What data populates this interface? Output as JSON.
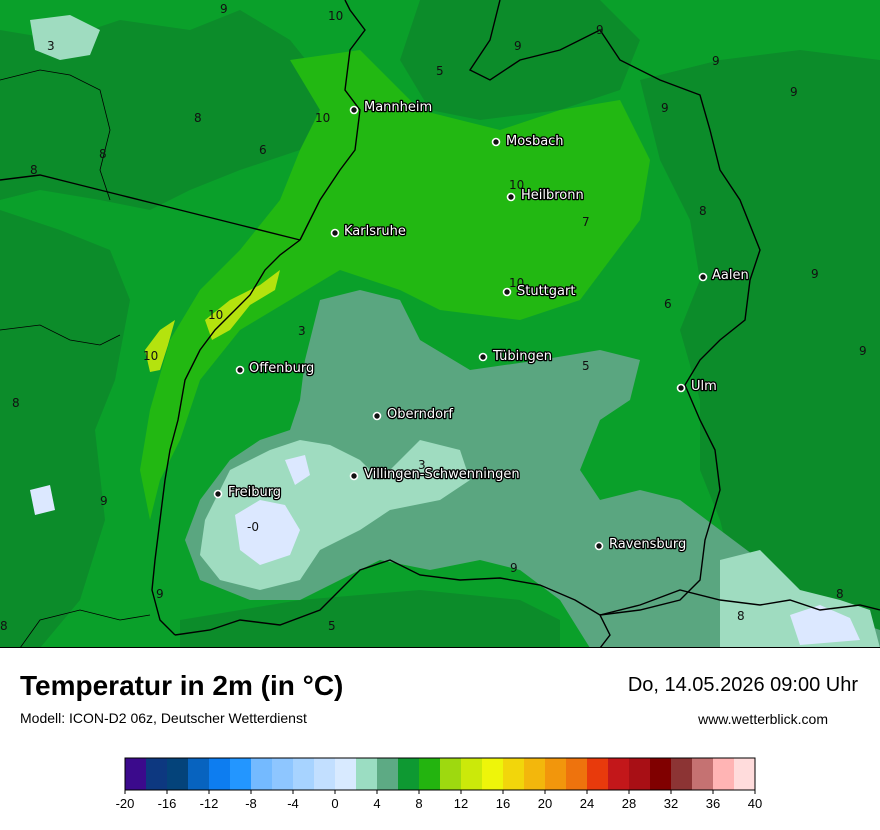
{
  "title": "Temperatur in 2m (in °C)",
  "model": "Modell: ICON-D2 06z, Deutscher Wetterdienst",
  "datetime": "Do, 14.05.2026 09:00 Uhr",
  "website": "www.wetterblick.com",
  "colors": {
    "base_green": "#0aa02a",
    "dark_green": "#0c8c2a",
    "light_green": "#22b812",
    "yellow_green": "#b4e30e",
    "sage": "#5aa680",
    "mint": "#9fdcc0",
    "pale_blue": "#dce8ff",
    "border": "#000000"
  },
  "cities": [
    {
      "name": "Mannheim"
    },
    {
      "name": "Mosbach"
    },
    {
      "name": "Heilbronn"
    },
    {
      "name": "Karlsruhe"
    },
    {
      "name": "Aalen"
    },
    {
      "name": "Stuttgart"
    },
    {
      "name": "Tübingen"
    },
    {
      "name": "Offenburg"
    },
    {
      "name": "Ulm"
    },
    {
      "name": "Oberndorf"
    },
    {
      "name": "Villingen-Schwenningen"
    },
    {
      "name": "Freiburg"
    },
    {
      "name": "Ravensburg"
    }
  ],
  "isotherm_labels": [
    "9",
    "10",
    "3",
    "9",
    "9",
    "9",
    "5",
    "9",
    "9",
    "8",
    "10",
    "6",
    "8",
    "10",
    "8",
    "7",
    "8",
    "10",
    "9",
    "3",
    "10",
    "6",
    "10",
    "9",
    "8",
    "5",
    "3",
    "9",
    "-0",
    "9",
    "9",
    "8",
    "8",
    "5",
    "8"
  ],
  "legend": {
    "colors": [
      "#3b0a8c",
      "#0d3880",
      "#04437a",
      "#0763bf",
      "#0d7df0",
      "#2396ff",
      "#74baff",
      "#8ec6ff",
      "#a7d3ff",
      "#c2dfff",
      "#d8eaff",
      "#9bddc2",
      "#5daa84",
      "#0e9932",
      "#23b40f",
      "#9ed90f",
      "#cbe90a",
      "#eef50a",
      "#f2d60b",
      "#f3b70c",
      "#f2960c",
      "#ee730d",
      "#e83a0c",
      "#c3171a",
      "#a80f15",
      "#800000",
      "#8c3434",
      "#c57272",
      "#ffb4b4",
      "#ffdcdc"
    ],
    "ticks": [
      "-20",
      "-16",
      "-12",
      "-8",
      "-4",
      "0",
      "4",
      "8",
      "12",
      "16",
      "20",
      "24",
      "28",
      "32",
      "36",
      "40"
    ]
  }
}
